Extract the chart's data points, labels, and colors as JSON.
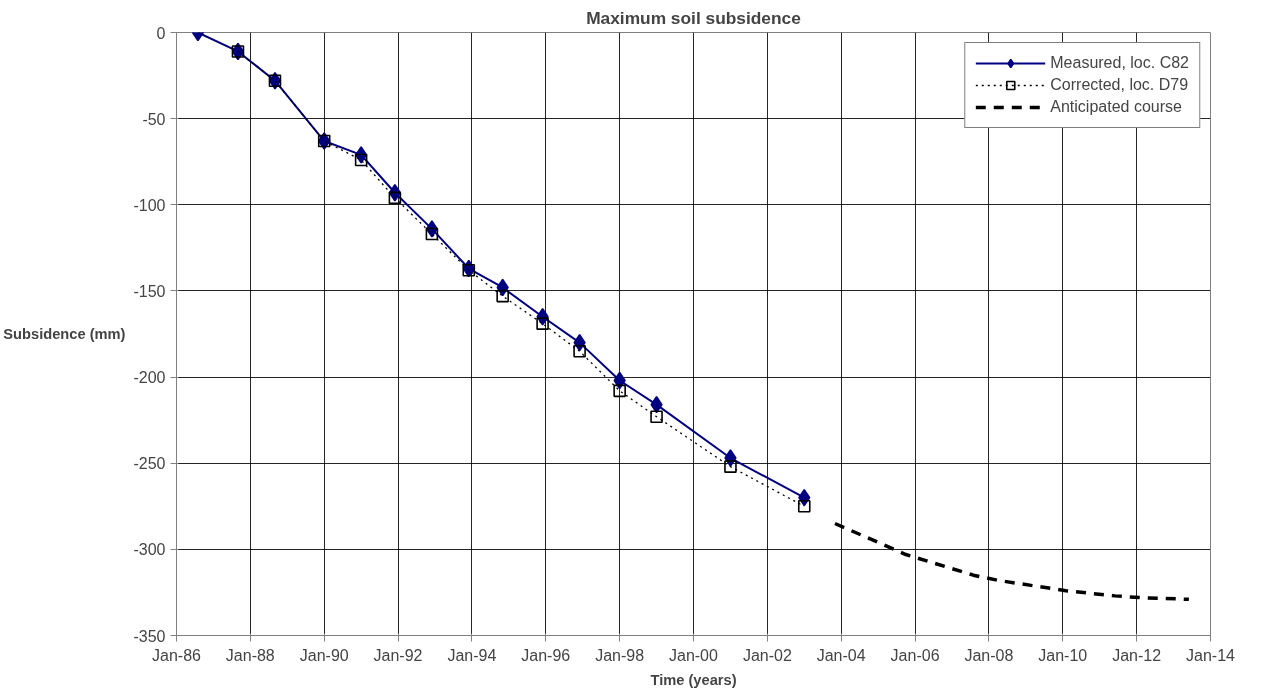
{
  "chart_data": {
    "type": "line",
    "title": "Maximum soil subsidence",
    "xlabel": "Time (years)",
    "ylabel": "Subsidence (mm)",
    "xlim": [
      "1986-01",
      "2014-01"
    ],
    "ylim": [
      -350,
      0
    ],
    "xticks": [
      {
        "value": "1986-01",
        "label": "Jan-86"
      },
      {
        "value": "1988-01",
        "label": "Jan-88"
      },
      {
        "value": "1990-01",
        "label": "Jan-90"
      },
      {
        "value": "1992-01",
        "label": "Jan-92"
      },
      {
        "value": "1994-01",
        "label": "Jan-94"
      },
      {
        "value": "1996-01",
        "label": "Jan-96"
      },
      {
        "value": "1998-01",
        "label": "Jan-98"
      },
      {
        "value": "2000-01",
        "label": "Jan-00"
      },
      {
        "value": "2002-01",
        "label": "Jan-02"
      },
      {
        "value": "2004-01",
        "label": "Jan-04"
      },
      {
        "value": "2006-01",
        "label": "Jan-06"
      },
      {
        "value": "2008-01",
        "label": "Jan-08"
      },
      {
        "value": "2010-01",
        "label": "Jan-10"
      },
      {
        "value": "2012-01",
        "label": "Jan-12"
      },
      {
        "value": "2014-01",
        "label": "Jan-14"
      }
    ],
    "yticks": [
      0,
      -50,
      -100,
      -150,
      -200,
      -250,
      -300,
      -350
    ],
    "grid": true,
    "legend": "top right",
    "series": [
      {
        "name": "Measured, loc. C82",
        "color": "#000080",
        "marker": "diamond",
        "line_style": "solid",
        "x": [
          "1986-08",
          "1987-09",
          "1988-09",
          "1990-01",
          "1991-01",
          "1991-12",
          "1992-12",
          "1993-12",
          "1994-11",
          "1995-12",
          "1996-12",
          "1998-01",
          "1999-01",
          "2001-01",
          "2003-01"
        ],
        "values": [
          0,
          -11,
          -28,
          -63,
          -71,
          -93,
          -114,
          -137,
          -148,
          -165,
          -180,
          -202,
          -216,
          -247,
          -270
        ]
      },
      {
        "name": "Corrected, loc. D79",
        "color": "#000000",
        "marker": "square",
        "line_style": "dotted",
        "x": [
          "1987-09",
          "1988-09",
          "1990-01",
          "1991-01",
          "1991-12",
          "1992-12",
          "1993-12",
          "1994-11",
          "1995-12",
          "1996-12",
          "1998-01",
          "1999-01",
          "2001-01",
          "2003-01"
        ],
        "values": [
          -11,
          -28,
          -63,
          -74,
          -96,
          -117,
          -138,
          -153,
          -169,
          -185,
          -208,
          -223,
          -252,
          -275
        ]
      },
      {
        "name": "Anticipated course",
        "color": "#000000",
        "marker": "none",
        "line_style": "dashed",
        "x": [
          "2003-11",
          "2005-10",
          "2007-08",
          "2008-04",
          "2010-02",
          "2011-06",
          "2012-02",
          "2013-06"
        ],
        "values": [
          -285,
          -303,
          -315,
          -318,
          -324,
          -327,
          -328,
          -329
        ]
      }
    ]
  }
}
